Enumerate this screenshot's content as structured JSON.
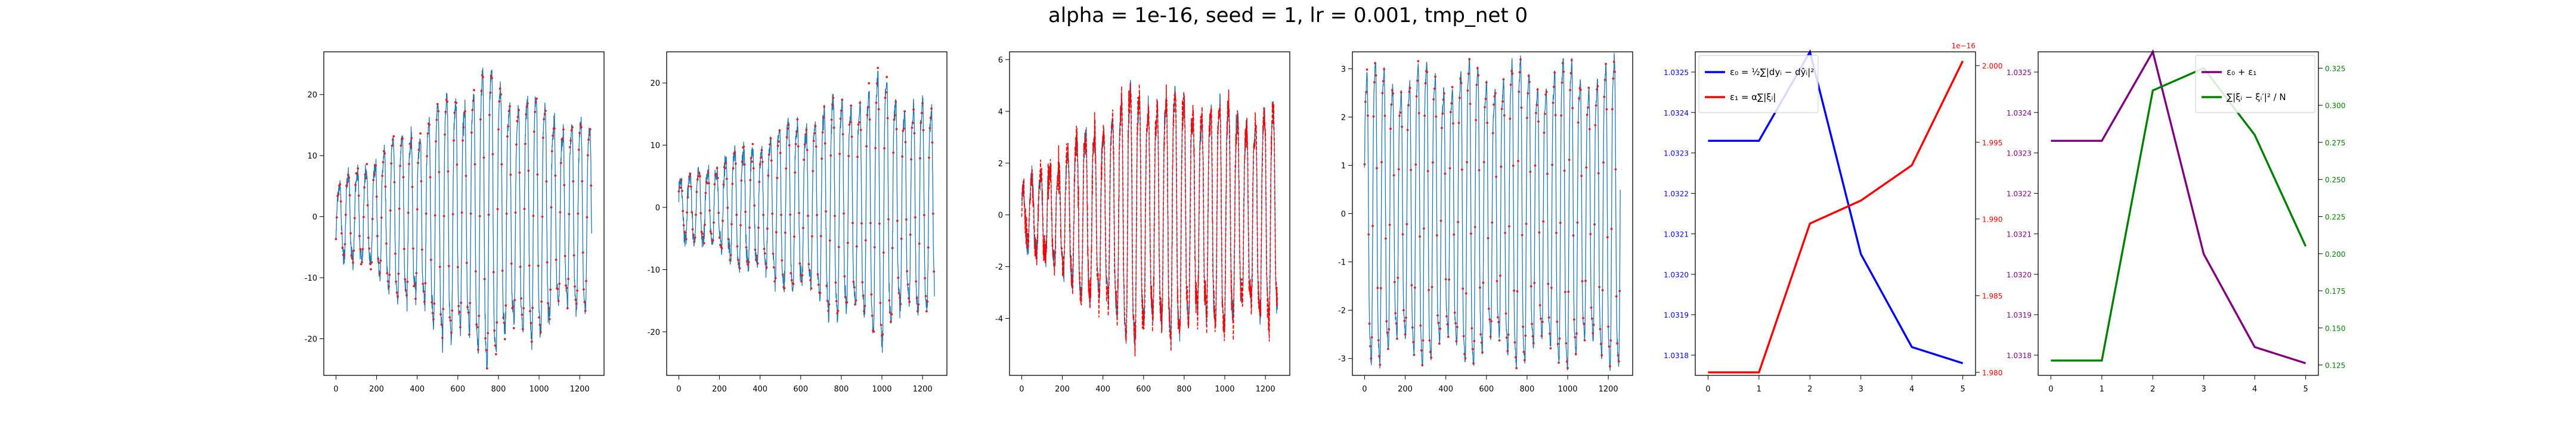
{
  "title": "alpha = 1e-16, seed = 1, lr = 0.001, tmp_net 0",
  "chart_data": [
    {
      "type": "line",
      "panel": 1,
      "xlim": [
        -60,
        1320
      ],
      "ylim": [
        -26,
        27
      ],
      "x_ticks": [
        0,
        200,
        400,
        600,
        800,
        1000,
        1200
      ],
      "y_ticks": [
        -20,
        -10,
        0,
        10,
        20
      ],
      "signal": {
        "n": 1260,
        "amp_start": 5,
        "amp_peak": 24,
        "peak_t": 720,
        "amp_end": 14,
        "period": 44,
        "phase": -0.6
      },
      "series": [
        {
          "style": "line",
          "color": "#1f77b4",
          "noise": 0.8
        },
        {
          "style": "dots",
          "color": "#d62728",
          "noise": 0.5,
          "step": 4
        }
      ]
    },
    {
      "type": "line",
      "panel": 2,
      "xlim": [
        -60,
        1320
      ],
      "ylim": [
        -27,
        25
      ],
      "x_ticks": [
        0,
        200,
        400,
        600,
        800,
        1000,
        1200
      ],
      "y_ticks": [
        -20,
        -10,
        0,
        10,
        20
      ],
      "signal": {
        "n": 1260,
        "amp_start": 4,
        "amp_peak": 21,
        "peak_t": 1000,
        "amp_end": 15,
        "period": 44,
        "phase": 0.3
      },
      "series": [
        {
          "style": "line",
          "color": "#1f77b4",
          "noise": 0.8
        },
        {
          "style": "dots",
          "color": "#d62728",
          "noise": 0.5,
          "step": 4
        }
      ]
    },
    {
      "type": "line",
      "panel": 3,
      "xlim": [
        -60,
        1320
      ],
      "ylim": [
        -6.2,
        6.3
      ],
      "x_ticks": [
        0,
        200,
        400,
        600,
        800,
        1000,
        1200
      ],
      "y_ticks": [
        -4,
        -2,
        0,
        2,
        4,
        6
      ],
      "signal": {
        "n": 1260,
        "amp_start": 1.0,
        "amp_peak": 4.9,
        "peak_t": 560,
        "amp_end": 3.8,
        "period": 44,
        "phase": 0.9
      },
      "series": [
        {
          "style": "line",
          "color": "#1f77b4",
          "noise": 0.25
        },
        {
          "style": "line",
          "color": "#ff0000",
          "noise": 0.35,
          "dash": "6 3"
        }
      ]
    },
    {
      "type": "line",
      "panel": 4,
      "xlim": [
        -60,
        1320
      ],
      "ylim": [
        -3.35,
        3.35
      ],
      "x_ticks": [
        0,
        200,
        400,
        600,
        800,
        1000,
        1200
      ],
      "y_ticks": [
        -3,
        -2,
        -1,
        0,
        1,
        2,
        3
      ],
      "signal": {
        "n": 1260,
        "amp_start": 3.0,
        "amp_peak": 3.05,
        "peak_t": 600,
        "amp_end": 3.1,
        "period": 42,
        "phase": 0.2
      },
      "series": [
        {
          "style": "line",
          "color": "#1f77b4",
          "noise": 0.05
        },
        {
          "style": "dots",
          "color": "#d62728",
          "noise": 0.04,
          "step": 4
        }
      ]
    },
    {
      "type": "line",
      "panel": 5,
      "x": [
        0,
        1,
        2,
        3,
        4,
        5
      ],
      "x_ticks": [
        0,
        1,
        2,
        3,
        4,
        5
      ],
      "xlim": [
        -0.25,
        5.25
      ],
      "left_axis": {
        "color": "#0000ff",
        "ylim": [
          1.03175,
          1.03255
        ],
        "ticks": [
          "1.0318",
          "1.0319",
          "1.0320",
          "1.0321",
          "1.0322",
          "1.0323",
          "1.0324",
          "1.0325"
        ],
        "tick_values": [
          1.0318,
          1.0319,
          1.032,
          1.0321,
          1.0322,
          1.0323,
          1.0324,
          1.0325
        ],
        "series": {
          "name": "ε₀ = ½∑|dyᵢ − dŷᵢ|²",
          "color": "#0000ff",
          "values": [
            1.03233,
            1.03233,
            1.03255,
            1.03205,
            1.03182,
            1.03178
          ]
        }
      },
      "right_axis": {
        "color": "#ff0000",
        "offset_text": "1e−16",
        "ylim": [
          1.9798,
          2.0009
        ],
        "ticks": [
          "1.980",
          "1.985",
          "1.990",
          "1.995",
          "2.000"
        ],
        "tick_values": [
          1.98,
          1.985,
          1.99,
          1.995,
          2.0
        ],
        "series": {
          "name": "ε₁ = α∑|ξᵢ|",
          "color": "#ff0000",
          "values": [
            1.98,
            1.98,
            1.9897,
            1.9912,
            1.9935,
            2.0003
          ]
        }
      },
      "legend": "top-left"
    },
    {
      "type": "line",
      "panel": 6,
      "x": [
        0,
        1,
        2,
        3,
        4,
        5
      ],
      "x_ticks": [
        0,
        1,
        2,
        3,
        4,
        5
      ],
      "xlim": [
        -0.25,
        5.25
      ],
      "left_axis": {
        "color": "#800080",
        "ylim": [
          1.03175,
          1.03255
        ],
        "ticks": [
          "1.0318",
          "1.0319",
          "1.0320",
          "1.0321",
          "1.0322",
          "1.0323",
          "1.0324",
          "1.0325"
        ],
        "tick_values": [
          1.0318,
          1.0319,
          1.032,
          1.0321,
          1.0322,
          1.0323,
          1.0324,
          1.0325
        ],
        "series": {
          "name": "ε₀ + ε₁",
          "color": "#800080",
          "values": [
            1.03233,
            1.03233,
            1.03255,
            1.03205,
            1.03182,
            1.03178
          ]
        }
      },
      "right_axis": {
        "color": "#008000",
        "ylim": [
          0.118,
          0.336
        ],
        "ticks": [
          "0.125",
          "0.150",
          "0.175",
          "0.200",
          "0.225",
          "0.250",
          "0.275",
          "0.300",
          "0.325"
        ],
        "tick_values": [
          0.125,
          0.15,
          0.175,
          0.2,
          0.225,
          0.25,
          0.275,
          0.3,
          0.325
        ],
        "series": {
          "name": "∑|ξᵢ − ξᵢ′|² / N",
          "color": "#008000",
          "values": [
            0.128,
            0.128,
            0.31,
            0.325,
            0.28,
            0.205
          ]
        }
      },
      "legend": "top-right"
    }
  ]
}
